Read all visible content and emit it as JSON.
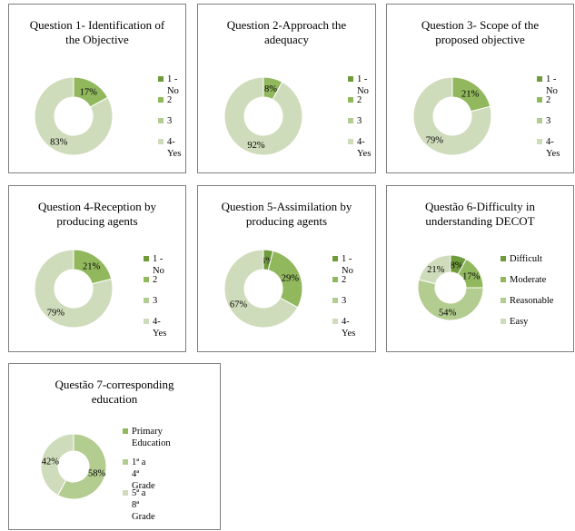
{
  "colors": {
    "c1": "#6f9b3c",
    "c2": "#92b85e",
    "c3": "#b3cc8f",
    "c4": "#cfdcbb"
  },
  "chart_data": [
    {
      "type": "pie",
      "title": "Question 1- Identification of\nthe Objective",
      "categories": [
        "1 - No",
        "2",
        "3",
        "4- Yes"
      ],
      "values": [
        0,
        17,
        0,
        83
      ],
      "labels": [
        "",
        "17%",
        "",
        "83%"
      ],
      "legend": "right"
    },
    {
      "type": "pie",
      "title": "Question 2-Approach the\nadequacy",
      "categories": [
        "1 - No",
        "2",
        "3",
        "4- Yes"
      ],
      "values": [
        0,
        8,
        0,
        92
      ],
      "labels": [
        "",
        "8%",
        "",
        "92%"
      ],
      "legend": "right"
    },
    {
      "type": "pie",
      "title": "Question 3- Scope of the\nproposed objective",
      "categories": [
        "1 - No",
        "2",
        "3",
        "4- Yes"
      ],
      "values": [
        0,
        21,
        0,
        79
      ],
      "labels": [
        "",
        "21%",
        "",
        "79%"
      ],
      "legend": "right"
    },
    {
      "type": "pie",
      "title": "Question 4-Reception by\nproducing agents",
      "categories": [
        "1 - No",
        "2",
        "3",
        "4- Yes"
      ],
      "values": [
        0,
        21,
        0,
        79
      ],
      "labels": [
        "",
        "21%",
        "",
        "79%"
      ],
      "legend": "right"
    },
    {
      "type": "pie",
      "title": "Question 5-Assimilation by\nproducing agents",
      "categories": [
        "1 - No",
        "2",
        "3",
        "4- Yes"
      ],
      "values": [
        4,
        29,
        0,
        67
      ],
      "labels": [
        "4%",
        "29%",
        "",
        "67%"
      ],
      "legend": "right"
    },
    {
      "type": "pie",
      "title": "Questão 6-Difficulty in\nunderstanding DECOT",
      "categories": [
        "Difficult",
        "Moderate",
        "Reasonable",
        "Easy"
      ],
      "values": [
        8,
        17,
        54,
        21
      ],
      "labels": [
        "8%",
        "17%",
        "54%",
        "21%"
      ],
      "legend": "right"
    },
    {
      "type": "pie",
      "title": "Questão 7-corresponding\neducation",
      "categories": [
        "Primary\nEducation",
        "1ª a 4ª\nGrade",
        "5ª a 8ª\nGrade"
      ],
      "values": [
        0,
        58,
        42
      ],
      "labels": [
        "",
        "58%",
        "42%"
      ],
      "legend": "right"
    }
  ]
}
